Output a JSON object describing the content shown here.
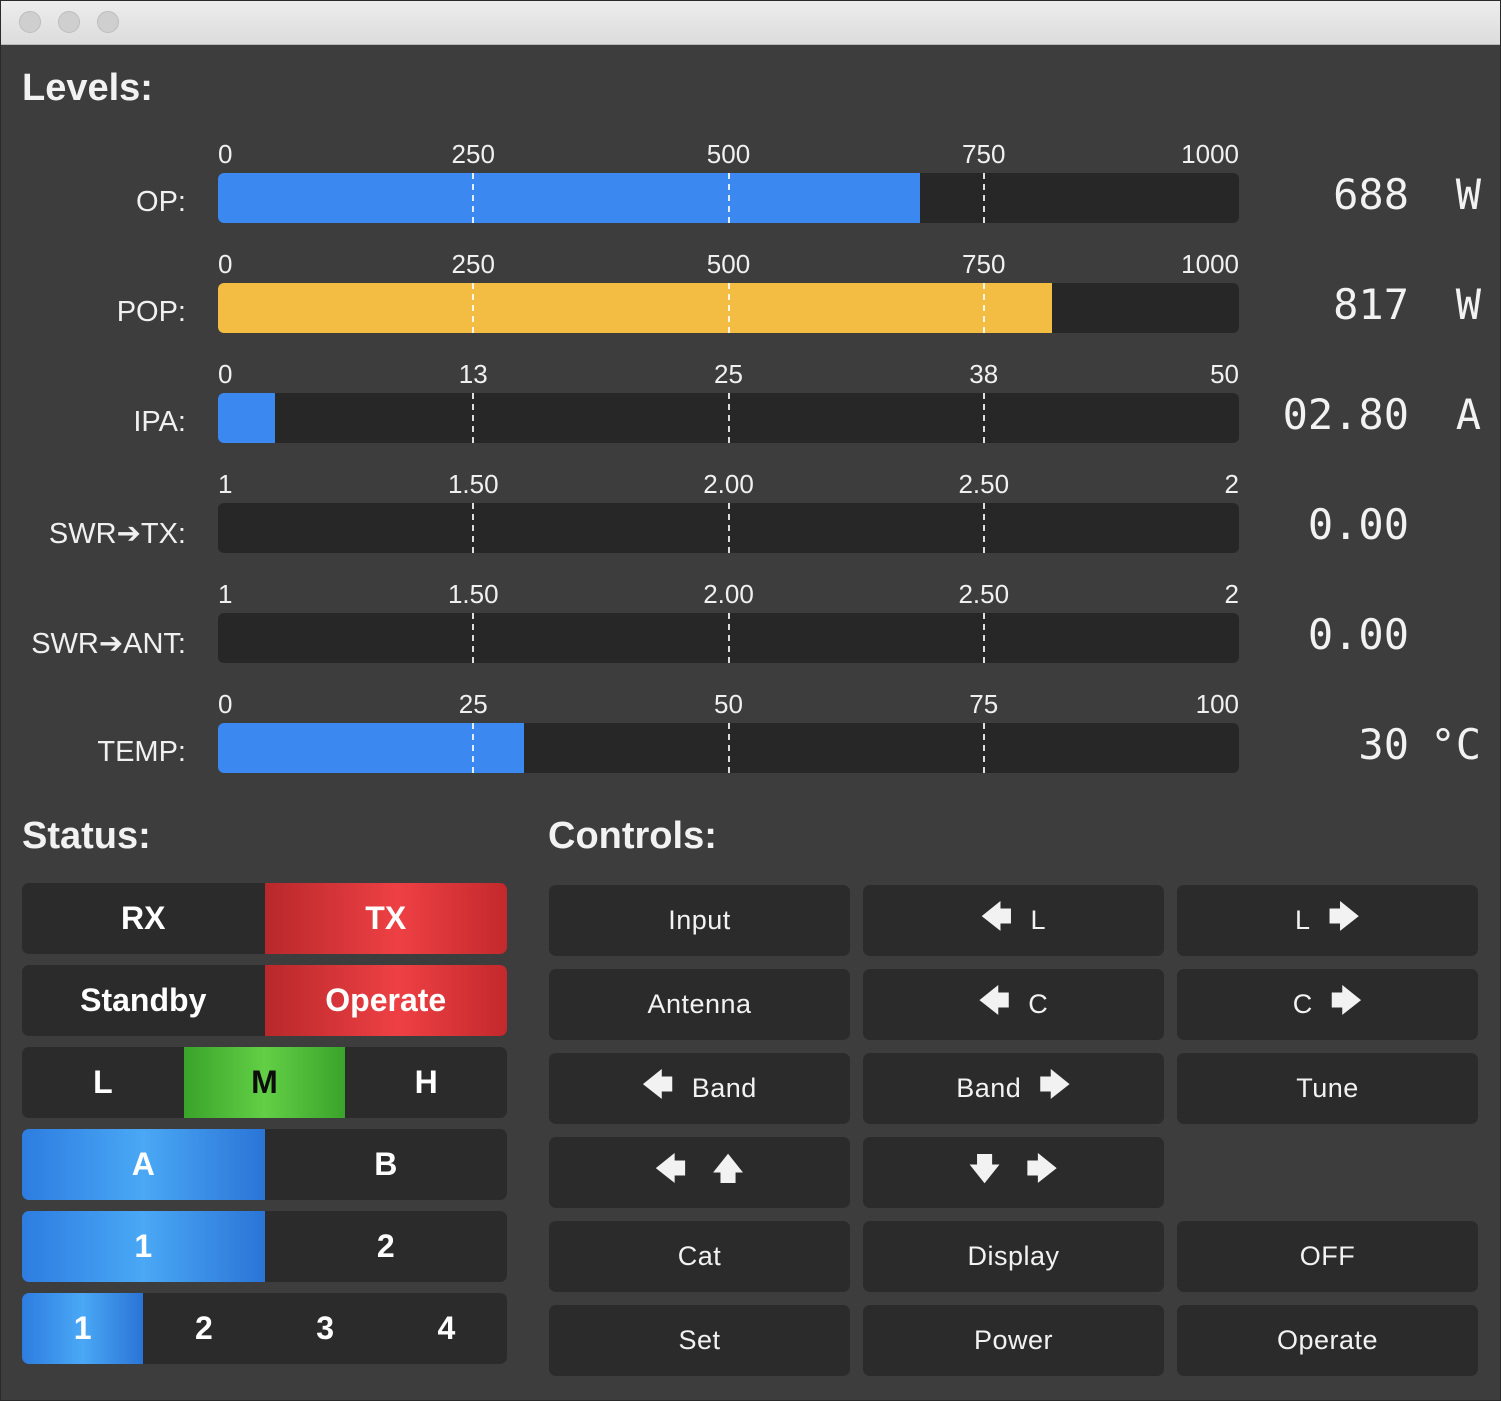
{
  "window": {
    "title": ""
  },
  "levels": {
    "title": "Levels:",
    "meters": [
      {
        "label": "OP:",
        "scale": [
          "0",
          "250",
          "500",
          "750",
          "1000"
        ],
        "value": "688",
        "unit": "W",
        "fill_fraction": 0.688,
        "color": "#3b88f0"
      },
      {
        "label": "POP:",
        "scale": [
          "0",
          "250",
          "500",
          "750",
          "1000"
        ],
        "value": "817",
        "unit": "W",
        "fill_fraction": 0.817,
        "color": "#f2bd42"
      },
      {
        "label": "IPA:",
        "scale": [
          "0",
          "13",
          "25",
          "38",
          "50"
        ],
        "value": "02.80",
        "unit": "A",
        "fill_fraction": 0.056,
        "color": "#3b88f0"
      },
      {
        "label": "SWR➔TX:",
        "scale": [
          "1",
          "1.50",
          "2.00",
          "2.50",
          "2"
        ],
        "value": "0.00",
        "unit": "",
        "fill_fraction": 0,
        "color": "#3b88f0"
      },
      {
        "label": "SWR➔ANT:",
        "scale": [
          "1",
          "1.50",
          "2.00",
          "2.50",
          "2"
        ],
        "value": "0.00",
        "unit": "",
        "fill_fraction": 0,
        "color": "#3b88f0"
      },
      {
        "label": "TEMP:",
        "scale": [
          "0",
          "25",
          "50",
          "75",
          "100"
        ],
        "value": "30",
        "unit": "°C",
        "fill_fraction": 0.3,
        "color": "#3b88f0"
      }
    ]
  },
  "status": {
    "title": "Status:",
    "rows": [
      [
        {
          "label": "RX",
          "state": "off"
        },
        {
          "label": "TX",
          "state": "red"
        }
      ],
      [
        {
          "label": "Standby",
          "state": "off"
        },
        {
          "label": "Operate",
          "state": "red"
        }
      ],
      [
        {
          "label": "L",
          "state": "off"
        },
        {
          "label": "M",
          "state": "green"
        },
        {
          "label": "H",
          "state": "off"
        }
      ],
      [
        {
          "label": "A",
          "state": "blue"
        },
        {
          "label": "B",
          "state": "off"
        }
      ],
      [
        {
          "label": "1",
          "state": "blue"
        },
        {
          "label": "2",
          "state": "off"
        }
      ],
      [
        {
          "label": "1",
          "state": "blue"
        },
        {
          "label": "2",
          "state": "off"
        },
        {
          "label": "3",
          "state": "off"
        },
        {
          "label": "4",
          "state": "off"
        }
      ]
    ]
  },
  "controls": {
    "title": "Controls:",
    "buttons": [
      {
        "name": "input",
        "before": "",
        "text": "Input",
        "after": ""
      },
      {
        "name": "l-left",
        "before": "🡄",
        "text": "L",
        "after": ""
      },
      {
        "name": "l-right",
        "before": "",
        "text": "L",
        "after": "🡆"
      },
      {
        "name": "antenna",
        "before": "",
        "text": "Antenna",
        "after": ""
      },
      {
        "name": "c-left",
        "before": "🡄",
        "text": "C",
        "after": ""
      },
      {
        "name": "c-right",
        "before": "",
        "text": "C",
        "after": "🡆"
      },
      {
        "name": "band-left",
        "before": "🡄",
        "text": "Band",
        "after": ""
      },
      {
        "name": "band-right",
        "before": "",
        "text": "Band",
        "after": "🡆"
      },
      {
        "name": "tune",
        "before": "",
        "text": "Tune",
        "after": ""
      },
      {
        "name": "left-up",
        "before": "🡄",
        "text": "",
        "after": "🡅"
      },
      {
        "name": "down-right",
        "before": "🡇",
        "text": "",
        "after": "🡆"
      },
      {
        "name": "cat",
        "before": "",
        "text": "Cat",
        "after": ""
      },
      {
        "name": "display",
        "before": "",
        "text": "Display",
        "after": ""
      },
      {
        "name": "off",
        "before": "",
        "text": "OFF",
        "after": ""
      },
      {
        "name": "set",
        "before": "",
        "text": "Set",
        "after": ""
      },
      {
        "name": "power",
        "before": "",
        "text": "Power",
        "after": ""
      },
      {
        "name": "operate",
        "before": "",
        "text": "Operate",
        "after": ""
      }
    ]
  }
}
